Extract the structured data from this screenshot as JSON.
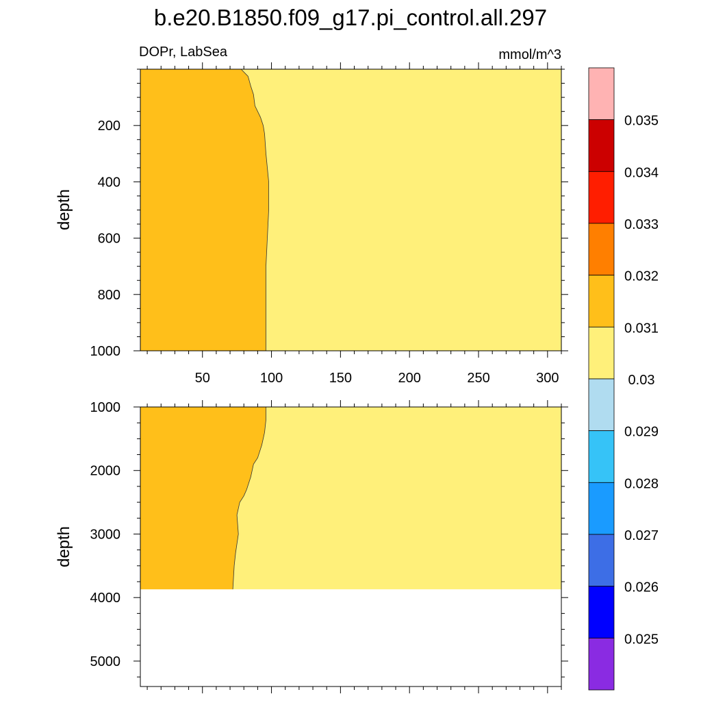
{
  "chart_data": {
    "type": "heatmap",
    "title": "b.e20.B1850.f09_g17.pi_control.all.297",
    "left_label": "DOPr, LabSea",
    "units": "mmol/m^3",
    "colorbar": {
      "colors": [
        "#8a2be2",
        "#0000ff",
        "#3d6ee6",
        "#1a9bff",
        "#36c3f7",
        "#b0dcf0",
        "#fff07a",
        "#ffbf1a",
        "#ff7f00",
        "#ff1e00",
        "#cc0000",
        "#ffb3b3"
      ],
      "labels": [
        "0.025",
        "0.026",
        "0.027",
        "0.028",
        "0.029",
        "0.03",
        "0.031",
        "0.032",
        "0.033",
        "0.034",
        "0.035"
      ]
    },
    "panels": [
      {
        "ylabel": "depth",
        "ylim": [
          0,
          1000
        ],
        "yticks": [
          "200",
          "400",
          "600",
          "800",
          "1000"
        ],
        "xticks": [
          "50",
          "100",
          "150",
          "200",
          "250",
          "300"
        ],
        "region_colors": {
          "left": "#ffbf1a",
          "right": "#fff07a"
        },
        "contour_0_031": [
          [
            78,
            0
          ],
          [
            83,
            25
          ],
          [
            85,
            60
          ],
          [
            87,
            90
          ],
          [
            88,
            130
          ],
          [
            92,
            170
          ],
          [
            94,
            200
          ],
          [
            95,
            230
          ],
          [
            96,
            300
          ],
          [
            98,
            400
          ],
          [
            98,
            500
          ],
          [
            97,
            600
          ],
          [
            96,
            700
          ],
          [
            96,
            800
          ],
          [
            96,
            900
          ],
          [
            96,
            1000
          ]
        ]
      },
      {
        "ylabel": "depth",
        "ylim": [
          1000,
          5400
        ],
        "yticks": [
          "1000",
          "2000",
          "3000",
          "4000",
          "5000"
        ],
        "region_colors": {
          "left": "#ffbf1a",
          "right": "#fff07a"
        },
        "data_bottom_depth": 3870,
        "contour_0_031": [
          [
            96,
            1000
          ],
          [
            96,
            1200
          ],
          [
            95,
            1400
          ],
          [
            93,
            1600
          ],
          [
            90,
            1800
          ],
          [
            87,
            1900
          ],
          [
            85,
            2100
          ],
          [
            82,
            2300
          ],
          [
            80,
            2400
          ],
          [
            77,
            2500
          ],
          [
            75,
            2700
          ],
          [
            76,
            3000
          ],
          [
            74,
            3300
          ],
          [
            73,
            3500
          ],
          [
            72,
            3870
          ]
        ]
      }
    ],
    "xlim": [
      5,
      310
    ]
  }
}
